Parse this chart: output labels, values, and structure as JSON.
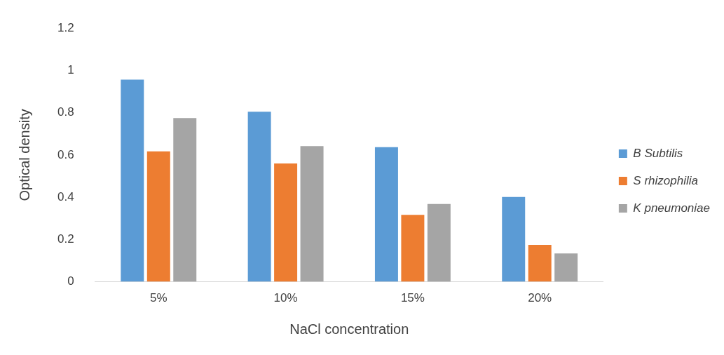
{
  "chart_data": {
    "type": "bar",
    "xlabel": "NaCl concentration",
    "ylabel": "Optical density",
    "categories": [
      "5%",
      "10%",
      "15%",
      "20%"
    ],
    "series": [
      {
        "name": "B Subtilis",
        "color": "#5b9bd5",
        "values": [
          0.957,
          0.805,
          0.637,
          0.401
        ]
      },
      {
        "name": "S rhizophilia",
        "color": "#ed7d31",
        "values": [
          0.617,
          0.56,
          0.317,
          0.175
        ]
      },
      {
        "name": "K pneumoniae",
        "color": "#a5a5a5",
        "values": [
          0.775,
          0.642,
          0.368,
          0.134
        ]
      }
    ],
    "ylim": [
      0,
      1.2
    ],
    "yticks": [
      0,
      0.2,
      0.4,
      0.6,
      0.8,
      1,
      1.2
    ],
    "grid": false,
    "legend": "right"
  }
}
